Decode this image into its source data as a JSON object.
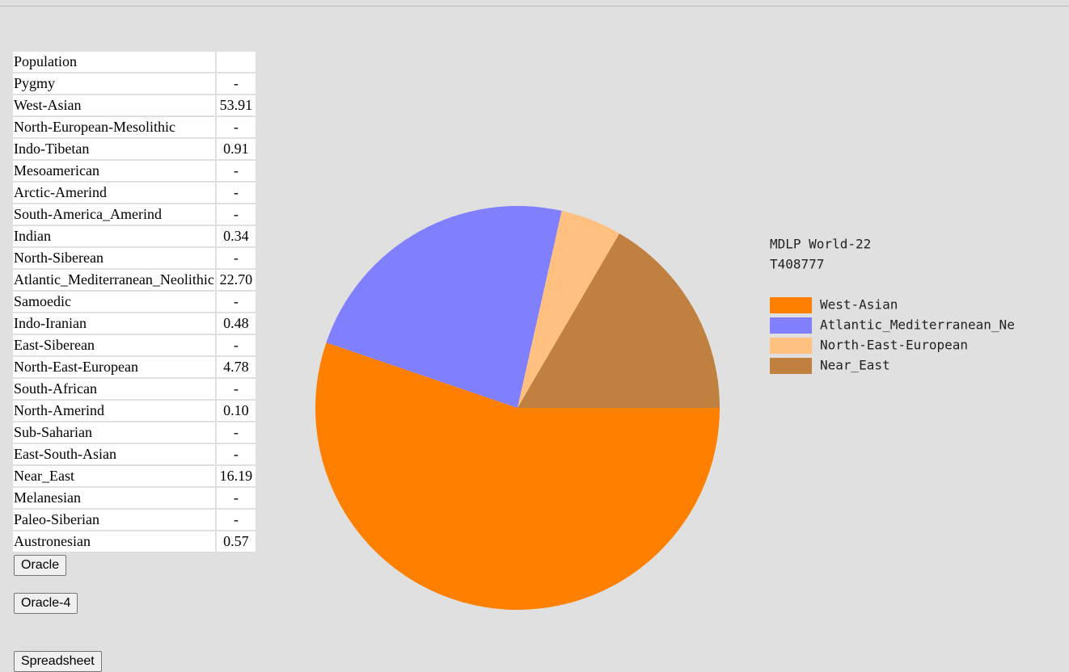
{
  "table": {
    "header": "Population",
    "rows": [
      [
        "Pygmy",
        "-"
      ],
      [
        "West-Asian",
        "53.91"
      ],
      [
        "North-European-Mesolithic",
        "-"
      ],
      [
        "Indo-Tibetan",
        "0.91"
      ],
      [
        "Mesoamerican",
        "-"
      ],
      [
        "Arctic-Amerind",
        "-"
      ],
      [
        "South-America_Amerind",
        "-"
      ],
      [
        "Indian",
        "0.34"
      ],
      [
        "North-Siberean",
        "-"
      ],
      [
        "Atlantic_Mediterranean_Neolithic",
        "22.70"
      ],
      [
        "Samoedic",
        "-"
      ],
      [
        "Indo-Iranian",
        "0.48"
      ],
      [
        "East-Siberean",
        "-"
      ],
      [
        "North-East-European",
        "4.78"
      ],
      [
        "South-African",
        "-"
      ],
      [
        "North-Amerind",
        "0.10"
      ],
      [
        "Sub-Saharian",
        "-"
      ],
      [
        "East-South-Asian",
        "-"
      ],
      [
        "Near_East",
        "16.19"
      ],
      [
        "Melanesian",
        "-"
      ],
      [
        "Paleo-Siberian",
        "-"
      ],
      [
        "Austronesian",
        "0.57"
      ]
    ]
  },
  "buttons": [
    "Oracle",
    "Oracle-4",
    "Spreadsheet"
  ],
  "chart_data": {
    "type": "pie",
    "title": "MDLP World-22",
    "subtitle": "T408777",
    "categories": [
      "West-Asian",
      "Atlantic_Mediterranean_Ne",
      "North-East-European",
      "Near_East"
    ],
    "values": [
      53.91,
      22.7,
      4.78,
      16.19
    ],
    "colors": [
      "#ff8000",
      "#8080ff",
      "#ffc080",
      "#c08040"
    ]
  }
}
